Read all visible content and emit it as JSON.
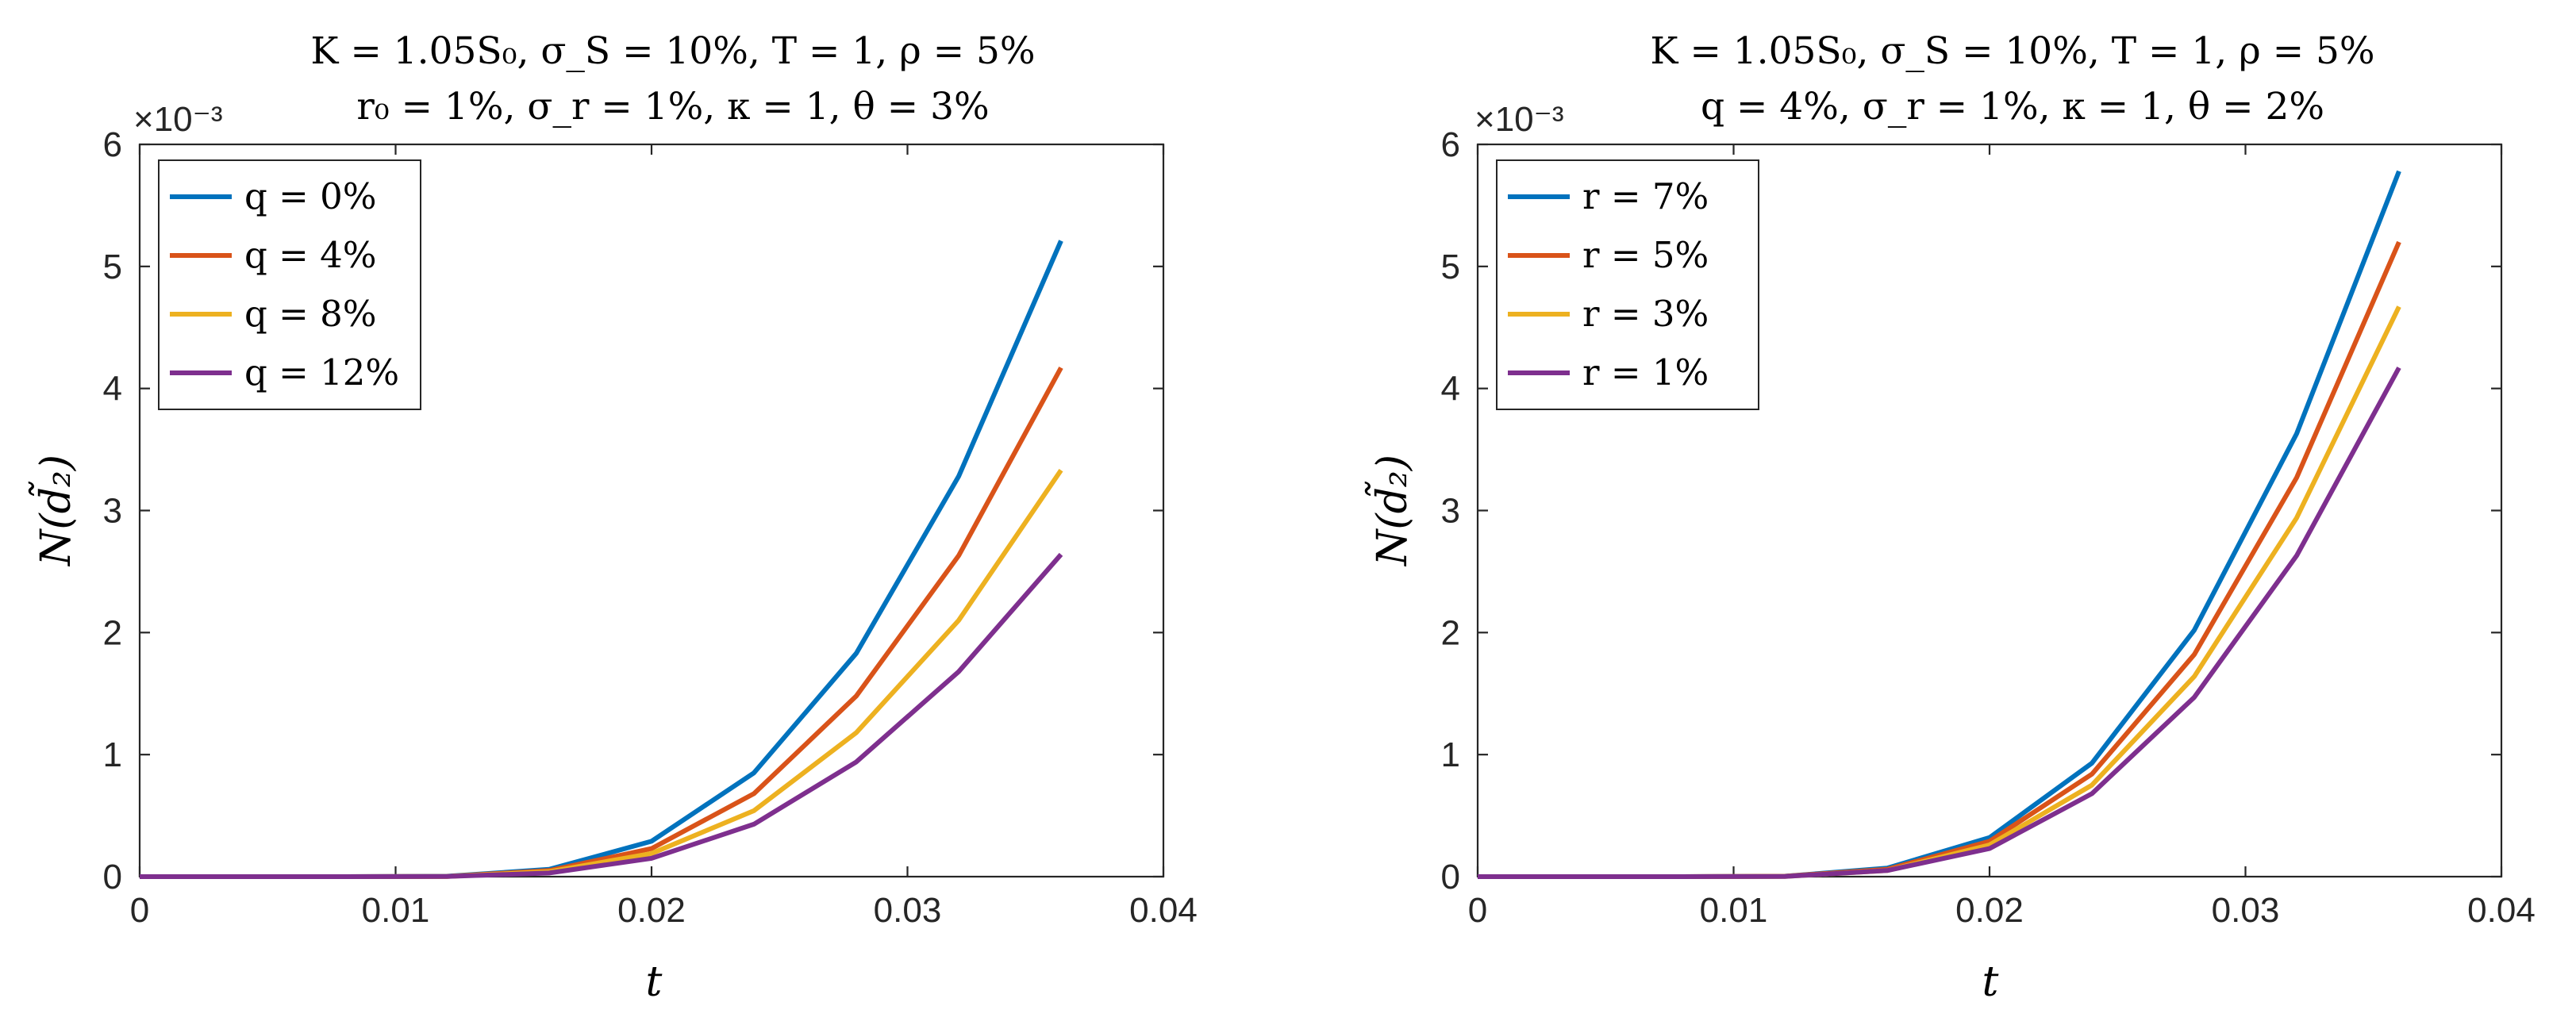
{
  "colors": {
    "series1": "#0072BD",
    "series2": "#D95319",
    "series3": "#EDB120",
    "series4": "#7E2F8E",
    "axis": "#262626"
  },
  "chart_data": [
    {
      "type": "line",
      "title": [
        "K = 1.05S₀, σ_S = 10%, T = 1, ρ = 5%",
        "r₀ = 1%, σ_r = 1%, κ = 1, θ = 3%"
      ],
      "xlabel": "t",
      "ylabel": "N(d̃₂)",
      "exponent_label": "×10⁻³",
      "xlim": [
        0,
        0.04
      ],
      "ylim": [
        0,
        6
      ],
      "xticks": [
        "0",
        "0.01",
        "0.02",
        "0.03",
        "0.04"
      ],
      "yticks": [
        "0",
        "1",
        "2",
        "3",
        "4",
        "5",
        "6"
      ],
      "legend_position": "top-left",
      "x": [
        0,
        0.004,
        0.008,
        0.012,
        0.016,
        0.02,
        0.024,
        0.028,
        0.032,
        0.036
      ],
      "series": [
        {
          "name": "q = 0%",
          "values": [
            0,
            0,
            0,
            0.003,
            0.06,
            0.29,
            0.85,
            1.83,
            3.28,
            5.21
          ]
        },
        {
          "name": "q = 4%",
          "values": [
            0,
            0,
            0,
            0.002,
            0.05,
            0.23,
            0.68,
            1.48,
            2.63,
            4.17
          ]
        },
        {
          "name": "q = 8%",
          "values": [
            0,
            0,
            0,
            0.002,
            0.04,
            0.19,
            0.54,
            1.18,
            2.1,
            3.33
          ]
        },
        {
          "name": "q = 12%",
          "values": [
            0,
            0,
            0,
            0.001,
            0.03,
            0.15,
            0.43,
            0.94,
            1.68,
            2.64
          ]
        }
      ]
    },
    {
      "type": "line",
      "title": [
        "K = 1.05S₀, σ_S = 10%, T = 1, ρ = 5%",
        "q = 4%, σ_r = 1%, κ = 1, θ = 2%"
      ],
      "xlabel": "t",
      "ylabel": "N(d̃₂)",
      "exponent_label": "×10⁻³",
      "xlim": [
        0,
        0.04
      ],
      "ylim": [
        0,
        6
      ],
      "xticks": [
        "0",
        "0.01",
        "0.02",
        "0.03",
        "0.04"
      ],
      "yticks": [
        "0",
        "1",
        "2",
        "3",
        "4",
        "5",
        "6"
      ],
      "legend_position": "top-left",
      "x": [
        0,
        0.004,
        0.008,
        0.012,
        0.016,
        0.02,
        0.024,
        0.028,
        0.032,
        0.036
      ],
      "series": [
        {
          "name": "r = 7%",
          "values": [
            0,
            0,
            0,
            0.003,
            0.07,
            0.32,
            0.93,
            2.02,
            3.63,
            5.78
          ]
        },
        {
          "name": "r = 5%",
          "values": [
            0,
            0,
            0,
            0.003,
            0.06,
            0.29,
            0.84,
            1.82,
            3.27,
            5.2
          ]
        },
        {
          "name": "r = 3%",
          "values": [
            0,
            0,
            0,
            0.002,
            0.05,
            0.26,
            0.75,
            1.64,
            2.94,
            4.67
          ]
        },
        {
          "name": "r = 1%",
          "values": [
            0,
            0,
            0,
            0.002,
            0.05,
            0.23,
            0.68,
            1.47,
            2.63,
            4.17
          ]
        }
      ]
    }
  ]
}
